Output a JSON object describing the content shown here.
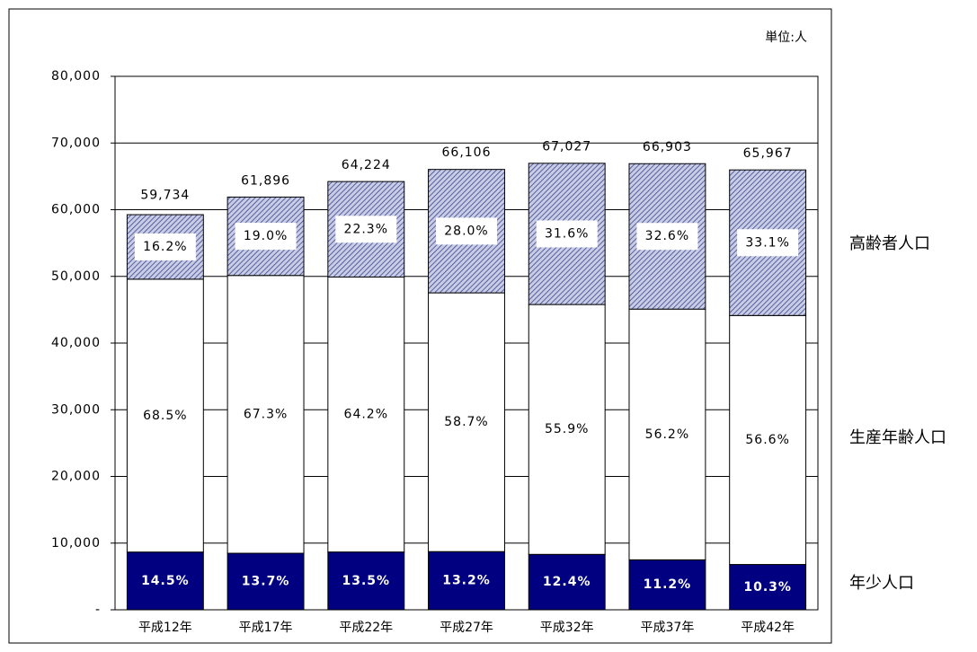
{
  "chart_data": {
    "type": "stacked_bar",
    "unit_note": "単位:人",
    "categories": [
      "平成12年",
      "平成17年",
      "平成22年",
      "平成27年",
      "平成32年",
      "平成37年",
      "平成42年"
    ],
    "series": [
      {
        "name": "年少人口",
        "color": "#000080",
        "values": [
          8661,
          8480,
          8670,
          8726,
          8311,
          7493,
          6795
        ],
        "share_labels": [
          "14.5%",
          "13.7%",
          "13.5%",
          "13.2%",
          "12.4%",
          "11.2%",
          "10.3%"
        ]
      },
      {
        "name": "生産年齢人口",
        "color": "#ffffff",
        "values": [
          40918,
          41656,
          41232,
          38804,
          37468,
          37599,
          37337
        ],
        "share_labels": [
          "68.5%",
          "67.3%",
          "64.2%",
          "58.7%",
          "55.9%",
          "56.2%",
          "56.6%"
        ]
      },
      {
        "name": "高齢者人口",
        "color": "#8088b8",
        "values": [
          9677,
          11760,
          14322,
          18510,
          21181,
          21810,
          21835
        ],
        "share_labels": [
          "16.2%",
          "19.0%",
          "22.3%",
          "28.0%",
          "31.6%",
          "32.6%",
          "33.1%"
        ]
      }
    ],
    "totals": [
      59734,
      61896,
      64224,
      66106,
      67027,
      66903,
      65967
    ],
    "total_labels": [
      "59,734",
      "61,896",
      "64,224",
      "66,106",
      "67,027",
      "66,903",
      "65,967"
    ],
    "ylim": [
      0,
      80000
    ],
    "yticks": [
      {
        "value": 0,
        "label": "-"
      },
      {
        "value": 10000,
        "label": "10,000"
      },
      {
        "value": 20000,
        "label": "20,000"
      },
      {
        "value": 30000,
        "label": "30,000"
      },
      {
        "value": 40000,
        "label": "40,000"
      },
      {
        "value": 50000,
        "label": "50,000"
      },
      {
        "value": 60000,
        "label": "60,000"
      },
      {
        "value": 70000,
        "label": "70,000"
      },
      {
        "value": 80000,
        "label": "80,000"
      }
    ],
    "grid": true
  }
}
